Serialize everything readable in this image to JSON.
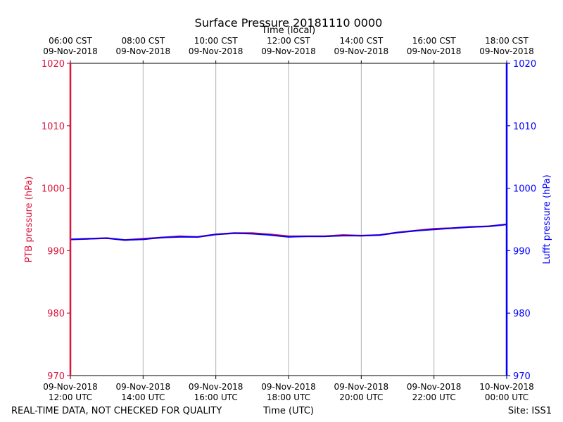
{
  "chart_data": {
    "type": "line",
    "title": "Surface Pressure 20181110 0000",
    "top_xlabel": "Time (local)",
    "xlabel": "Time (UTC)",
    "ylabel_left": "PTB pressure (hPa)",
    "ylabel_right": "Lufft pressure (hPa)",
    "ylim": [
      970,
      1020
    ],
    "yticks": [
      970,
      980,
      990,
      1000,
      1010,
      1020
    ],
    "xlim_hours_utc": [
      12,
      24
    ],
    "grid": "vertical",
    "bottom_ticks": [
      {
        "x": 12,
        "line1": "09-Nov-2018",
        "line2": "12:00 UTC"
      },
      {
        "x": 14,
        "line1": "09-Nov-2018",
        "line2": "14:00 UTC"
      },
      {
        "x": 16,
        "line1": "09-Nov-2018",
        "line2": "16:00 UTC"
      },
      {
        "x": 18,
        "line1": "09-Nov-2018",
        "line2": "18:00 UTC"
      },
      {
        "x": 20,
        "line1": "09-Nov-2018",
        "line2": "20:00 UTC"
      },
      {
        "x": 22,
        "line1": "09-Nov-2018",
        "line2": "22:00 UTC"
      },
      {
        "x": 24,
        "line1": "10-Nov-2018",
        "line2": "00:00 UTC"
      }
    ],
    "top_ticks": [
      {
        "x": 12,
        "line1": "06:00 CST",
        "line2": "09-Nov-2018"
      },
      {
        "x": 14,
        "line1": "08:00 CST",
        "line2": "09-Nov-2018"
      },
      {
        "x": 16,
        "line1": "10:00 CST",
        "line2": "09-Nov-2018"
      },
      {
        "x": 18,
        "line1": "12:00 CST",
        "line2": "09-Nov-2018"
      },
      {
        "x": 20,
        "line1": "14:00 CST",
        "line2": "09-Nov-2018"
      },
      {
        "x": 22,
        "line1": "16:00 CST",
        "line2": "09-Nov-2018"
      },
      {
        "x": 24,
        "line1": "18:00 CST",
        "line2": "09-Nov-2018"
      }
    ],
    "series": [
      {
        "name": "PTB pressure",
        "color": "#dc143c",
        "x": [
          12.0,
          12.5,
          13.0,
          13.5,
          14.0,
          14.5,
          15.0,
          15.5,
          16.0,
          16.5,
          17.0,
          17.5,
          18.0,
          18.5,
          19.0,
          19.5,
          20.0,
          20.5,
          21.0,
          21.5,
          22.0,
          22.5,
          23.0,
          23.5,
          24.0
        ],
        "values": [
          991.8,
          991.9,
          992.0,
          991.7,
          991.9,
          992.1,
          992.3,
          992.2,
          992.6,
          992.8,
          992.8,
          992.6,
          992.3,
          992.3,
          992.3,
          992.5,
          992.4,
          992.5,
          992.9,
          993.2,
          993.5,
          993.6,
          993.8,
          993.9,
          994.2
        ]
      },
      {
        "name": "Lufft pressure",
        "color": "#0000ff",
        "x": [
          12.0,
          12.5,
          13.0,
          13.5,
          14.0,
          14.5,
          15.0,
          15.5,
          16.0,
          16.5,
          17.0,
          17.5,
          18.0,
          18.5,
          19.0,
          19.5,
          20.0,
          20.5,
          21.0,
          21.5,
          22.0,
          22.5,
          23.0,
          23.5,
          24.0
        ],
        "values": [
          991.8,
          991.9,
          992.0,
          991.7,
          991.8,
          992.1,
          992.2,
          992.2,
          992.6,
          992.8,
          992.7,
          992.5,
          992.2,
          992.3,
          992.3,
          992.4,
          992.4,
          992.5,
          992.9,
          993.2,
          993.4,
          993.6,
          993.8,
          993.9,
          994.2
        ]
      }
    ],
    "footer_left": "REAL-TIME DATA, NOT CHECKED FOR QUALITY",
    "footer_right": "Site: ISS1"
  }
}
